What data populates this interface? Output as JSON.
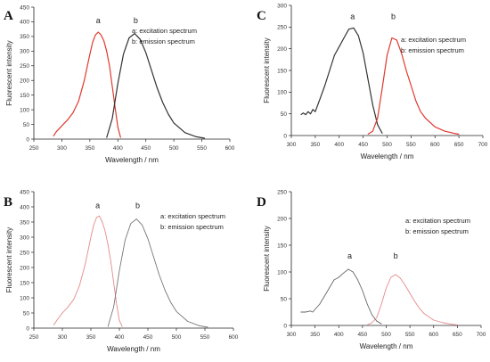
{
  "chart_data": [
    {
      "panel": "A",
      "type": "line",
      "xlabel": "Wavelength / nm",
      "ylabel": "Fluorescent intensity",
      "xlim": [
        250,
        600
      ],
      "ylim": [
        0,
        450
      ],
      "xticks": [
        250,
        300,
        350,
        400,
        450,
        500,
        550,
        600
      ],
      "yticks": [
        0,
        50,
        100,
        150,
        200,
        250,
        300,
        350,
        400,
        450
      ],
      "legend": [
        "a: excitation spectrum",
        "b: emission spectrum"
      ],
      "legend_position": "top-right",
      "peak_labels": [
        "a",
        "b"
      ],
      "series": [
        {
          "label": "a",
          "color": "#e03a2f",
          "width": 1.2,
          "peak_label_xy": [
            365,
            395
          ],
          "x": [
            285,
            290,
            300,
            310,
            320,
            330,
            340,
            350,
            355,
            360,
            365,
            370,
            375,
            380,
            385,
            390,
            395,
            400,
            405
          ],
          "y": [
            10,
            25,
            45,
            65,
            90,
            130,
            200,
            290,
            330,
            355,
            365,
            355,
            335,
            300,
            250,
            180,
            110,
            40,
            5
          ]
        },
        {
          "label": "b",
          "color": "#333333",
          "width": 1.2,
          "peak_label_xy": [
            432,
            395
          ],
          "x": [
            380,
            390,
            400,
            410,
            420,
            430,
            440,
            450,
            460,
            470,
            480,
            490,
            500,
            520,
            540,
            555
          ],
          "y": [
            5,
            70,
            190,
            290,
            345,
            360,
            340,
            295,
            235,
            175,
            125,
            85,
            55,
            22,
            8,
            3
          ]
        }
      ]
    },
    {
      "panel": "B",
      "type": "line",
      "xlabel": "Wavelength / nm",
      "ylabel": "Fluorescent intensity",
      "xlim": [
        250,
        600
      ],
      "ylim": [
        0,
        450
      ],
      "xticks": [
        250,
        300,
        350,
        400,
        450,
        500,
        550,
        600
      ],
      "yticks": [
        0,
        50,
        100,
        150,
        200,
        250,
        300,
        350,
        400,
        450
      ],
      "legend": [
        "a: excitation spectrum",
        "b: emission spectrum"
      ],
      "legend_position": "top-right",
      "peak_labels": [
        "a",
        "b"
      ],
      "series": [
        {
          "label": "a",
          "color": "#e58a8a",
          "width": 0.9,
          "peak_label_xy": [
            362,
            395
          ],
          "x": [
            285,
            290,
            300,
            310,
            320,
            330,
            340,
            350,
            355,
            360,
            365,
            370,
            375,
            380,
            385,
            390,
            395,
            400,
            405
          ],
          "y": [
            10,
            25,
            50,
            70,
            95,
            140,
            210,
            300,
            340,
            365,
            370,
            350,
            320,
            275,
            220,
            150,
            80,
            25,
            5
          ]
        },
        {
          "label": "b",
          "color": "#777777",
          "width": 0.9,
          "peak_label_xy": [
            432,
            395
          ],
          "x": [
            380,
            390,
            400,
            410,
            420,
            430,
            440,
            450,
            460,
            470,
            480,
            490,
            500,
            520,
            540,
            555
          ],
          "y": [
            5,
            70,
            190,
            290,
            345,
            360,
            340,
            295,
            235,
            175,
            125,
            85,
            55,
            22,
            8,
            3
          ]
        }
      ]
    },
    {
      "panel": "C",
      "type": "line",
      "xlabel": "Wavelength / nm",
      "ylabel": "Fluorescent intensity",
      "xlim": [
        300,
        700
      ],
      "ylim": [
        0,
        300
      ],
      "xticks": [
        300,
        350,
        400,
        450,
        500,
        550,
        600,
        650,
        700
      ],
      "yticks": [
        0,
        50,
        100,
        150,
        200,
        250,
        300
      ],
      "legend": [
        "a: excitation spectrum",
        "b: emission spectrum"
      ],
      "legend_position": "top-right",
      "peak_labels": [
        "a",
        "b"
      ],
      "series": [
        {
          "label": "a",
          "color": "#333333",
          "width": 1.2,
          "peak_label_xy": [
            428,
            268
          ],
          "x": [
            320,
            325,
            330,
            335,
            340,
            345,
            350,
            360,
            370,
            380,
            390,
            400,
            410,
            420,
            430,
            440,
            450,
            460,
            470,
            480,
            490
          ],
          "y": [
            48,
            52,
            48,
            55,
            50,
            60,
            55,
            85,
            115,
            150,
            185,
            205,
            225,
            245,
            248,
            230,
            190,
            130,
            70,
            25,
            5
          ]
        },
        {
          "label": "b",
          "color": "#e03a2f",
          "width": 1.2,
          "peak_label_xy": [
            513,
            268
          ],
          "x": [
            460,
            470,
            480,
            490,
            500,
            510,
            520,
            530,
            540,
            550,
            560,
            570,
            580,
            600,
            620,
            640,
            650
          ],
          "y": [
            3,
            10,
            40,
            110,
            185,
            225,
            220,
            190,
            150,
            115,
            80,
            55,
            40,
            20,
            10,
            5,
            3
          ]
        }
      ]
    },
    {
      "panel": "D",
      "type": "line",
      "xlabel": "Wavelength / nm",
      "ylabel": "Fluorescent intensity",
      "xlim": [
        300,
        700
      ],
      "ylim": [
        0,
        250
      ],
      "xticks": [
        300,
        350,
        400,
        450,
        500,
        550,
        600,
        650,
        700
      ],
      "yticks": [
        0,
        50,
        100,
        150,
        200,
        250
      ],
      "legend": [
        "a: excitation spectrum",
        "b: emission spectrum"
      ],
      "legend_position": "top-right",
      "peak_labels": [
        "a",
        "b"
      ],
      "series": [
        {
          "label": "a",
          "color": "#666666",
          "width": 0.9,
          "peak_label_xy": [
            423,
            125
          ],
          "x": [
            320,
            330,
            340,
            345,
            350,
            360,
            370,
            380,
            390,
            400,
            410,
            420,
            430,
            440,
            450,
            460,
            470,
            480,
            490
          ],
          "y": [
            25,
            25,
            27,
            25,
            30,
            40,
            55,
            70,
            85,
            90,
            98,
            105,
            100,
            85,
            65,
            40,
            20,
            8,
            3
          ]
        },
        {
          "label": "b",
          "color": "#e58a8a",
          "width": 0.9,
          "peak_label_xy": [
            520,
            125
          ],
          "x": [
            460,
            470,
            480,
            490,
            500,
            510,
            520,
            530,
            540,
            550,
            560,
            570,
            580,
            600,
            620,
            640,
            650
          ],
          "y": [
            1,
            5,
            15,
            40,
            70,
            90,
            95,
            88,
            75,
            60,
            45,
            32,
            22,
            10,
            5,
            2,
            1
          ]
        }
      ]
    }
  ]
}
